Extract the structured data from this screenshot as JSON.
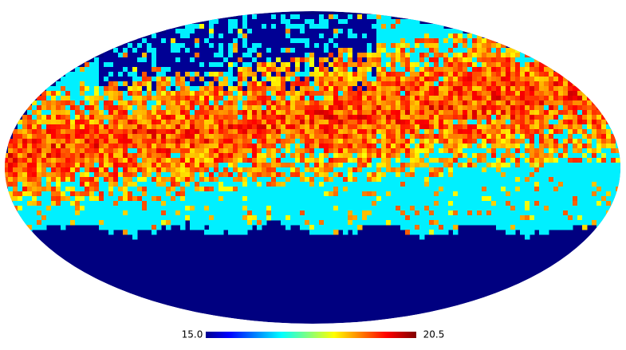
{
  "colorbar": {
    "min": {
      "value": 15,
      "label": "15.0"
    },
    "max": {
      "value": 20.5,
      "label": "20.5"
    },
    "colormap": "jet"
  }
}
